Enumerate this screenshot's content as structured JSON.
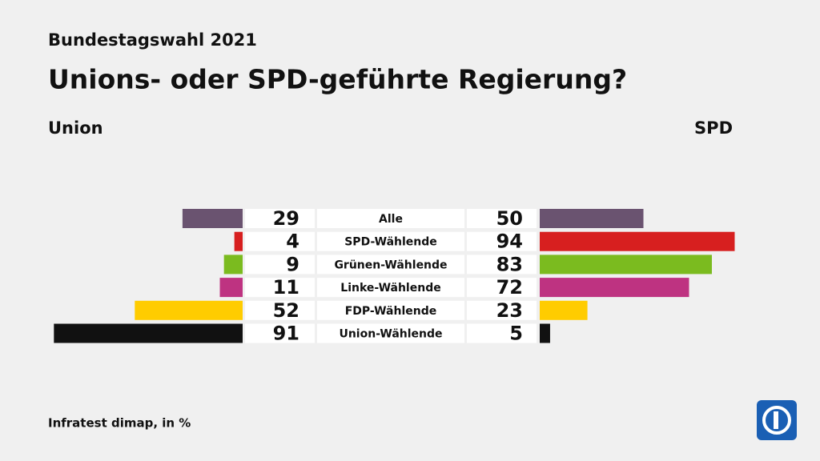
{
  "chart_data": {
    "type": "diverging-bar",
    "subtitle": "Bundestagswahl 2021",
    "title": "Unions- oder SPD-geführte Regierung?",
    "source": "Infratest dimap, in %",
    "categories": [
      "Alle",
      "SPD-Wählende",
      "Grünen-Wählende",
      "Linke-Wählende",
      "FDP-Wählende",
      "Union-Wählende"
    ],
    "colors": [
      "#6a5370",
      "#d71f1f",
      "#7bbb1f",
      "#be3381",
      "#ffcc00",
      "#111111"
    ],
    "series": [
      {
        "name": "Union",
        "values": [
          29,
          4,
          9,
          11,
          52,
          91
        ]
      },
      {
        "name": "SPD",
        "values": [
          50,
          94,
          83,
          72,
          23,
          5
        ]
      }
    ]
  }
}
